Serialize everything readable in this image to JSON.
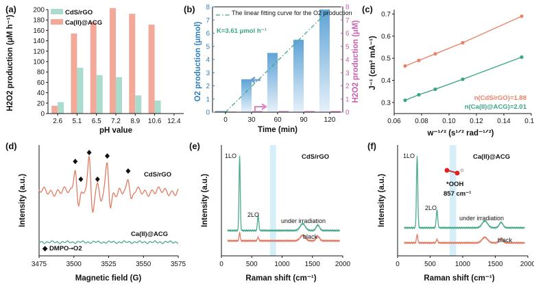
{
  "chart_data": [
    {
      "panel": "(a)",
      "type": "bar",
      "categories": [
        "2.6",
        "5.1",
        "6.5",
        "7.2",
        "8.9",
        "10.6",
        "12.4"
      ],
      "series": [
        {
          "name": "CdS/rGO",
          "color": "#a9dccd",
          "values": [
            22,
            88,
            74,
            70,
            35,
            25,
            0
          ]
        },
        {
          "name": "Ca(II)@ACG",
          "color": "#f2a99a",
          "values": [
            15,
            154,
            176,
            203,
            192,
            171,
            0
          ]
        }
      ],
      "title": "",
      "xlabel": "pH value",
      "ylabel": "H2O2 production (μM h⁻¹)",
      "ylim": [
        0,
        200
      ],
      "yticks": [
        "0",
        "20",
        "40",
        "60",
        "80",
        "100",
        "120",
        "140",
        "160",
        "180",
        "200"
      ]
    },
    {
      "panel": "(b)",
      "type": "bar",
      "categories": [
        "0",
        "30",
        "60",
        "90",
        "120"
      ],
      "series": [
        {
          "name": "O2 production",
          "color": "#5fa3d6",
          "values": [
            0.1,
            2.5,
            4.5,
            5.5,
            7.8
          ]
        },
        {
          "name": "H2O2 production",
          "color": "#e7a3d3",
          "values": [
            0.05,
            0.1,
            0.1,
            0.1,
            0.1
          ]
        }
      ],
      "fit_line": {
        "label": "The linear fitting curve for the O2 production",
        "x": [
          0,
          120
        ],
        "y": [
          0,
          7.8
        ]
      },
      "annotation": "K=3.61 μmol h⁻¹",
      "xlabel": "Time (min)",
      "ylabel": "O2 production (μmol)",
      "ylabel_right": "H2O2 production (μM)",
      "ylim": [
        0,
        8
      ],
      "yticks": [
        "0",
        "1",
        "2",
        "3",
        "4",
        "5",
        "6",
        "7",
        "8"
      ],
      "yticks_right": [
        "0",
        "1",
        "2",
        "3",
        "4",
        "5",
        "6",
        "7",
        "8"
      ]
    },
    {
      "panel": "(c)",
      "type": "line",
      "series": [
        {
          "name": "n(CdS/rGO)=1.88",
          "color": "#e8836a",
          "x": [
            0.068,
            0.078,
            0.09,
            0.11,
            0.153
          ],
          "y": [
            0.465,
            0.49,
            0.52,
            0.57,
            0.69
          ]
        },
        {
          "name": "n(Ca(II)@ACG)=2.01",
          "color": "#3aa586",
          "x": [
            0.068,
            0.078,
            0.09,
            0.11,
            0.153
          ],
          "y": [
            0.31,
            0.335,
            0.36,
            0.405,
            0.505
          ]
        }
      ],
      "xlabel": "w⁻¹ᐟ² (s¹ᐟ² rad⁻¹ᐟ²)",
      "ylabel": "J⁻¹ (cm² mA⁻¹)",
      "xlim": [
        0.06,
        0.16
      ],
      "ylim": [
        0.25,
        0.72
      ],
      "xticks": [
        "0.06",
        "0.08",
        "0.10",
        "0.12",
        "0.14",
        "0.16"
      ],
      "yticks": [
        "0.3",
        "0.4",
        "0.5",
        "0.6",
        "0.7"
      ]
    },
    {
      "panel": "(d)",
      "type": "line",
      "series": [
        {
          "name": "CdS/rGO",
          "color": "#e07a62"
        },
        {
          "name": "Ca(II)@ACG",
          "color": "#4aaa8c"
        }
      ],
      "legend": "◆ DMPO-•O2",
      "xlabel": "Magnetic field (G)",
      "ylabel": "Intensity (a.u.)",
      "xlim": [
        3475,
        3575
      ],
      "xticks": [
        "3475",
        "3500",
        "3525",
        "3550",
        "3575"
      ]
    },
    {
      "panel": "(e)",
      "type": "line",
      "title": "CdS/rGO",
      "series": [
        {
          "name": "under irradiation",
          "color": "#4aaa8c"
        },
        {
          "name": "black",
          "color": "#e07a62"
        }
      ],
      "peaks": [
        "1LO",
        "2LO"
      ],
      "xlabel": "Raman shift (cm⁻¹)",
      "ylabel": "Intensity (a.u.)",
      "xlim": [
        0,
        2000
      ],
      "xticks": [
        "0",
        "500",
        "1000",
        "1500",
        "2000"
      ]
    },
    {
      "panel": "(f)",
      "type": "line",
      "title": "Ca(II)@ACG",
      "series": [
        {
          "name": "under irradiation",
          "color": "#4aaa8c"
        },
        {
          "name": "black",
          "color": "#e07a62"
        }
      ],
      "peaks": [
        "1LO",
        "2LO"
      ],
      "annotation": "*OOH",
      "annotation2": "857 cm⁻¹",
      "xlabel": "Raman shift (cm⁻¹)",
      "ylabel": "Intensity (a.u.)",
      "xlim": [
        0,
        2000
      ],
      "xticks": [
        "0",
        "500",
        "1000",
        "1500",
        "2000"
      ]
    }
  ]
}
